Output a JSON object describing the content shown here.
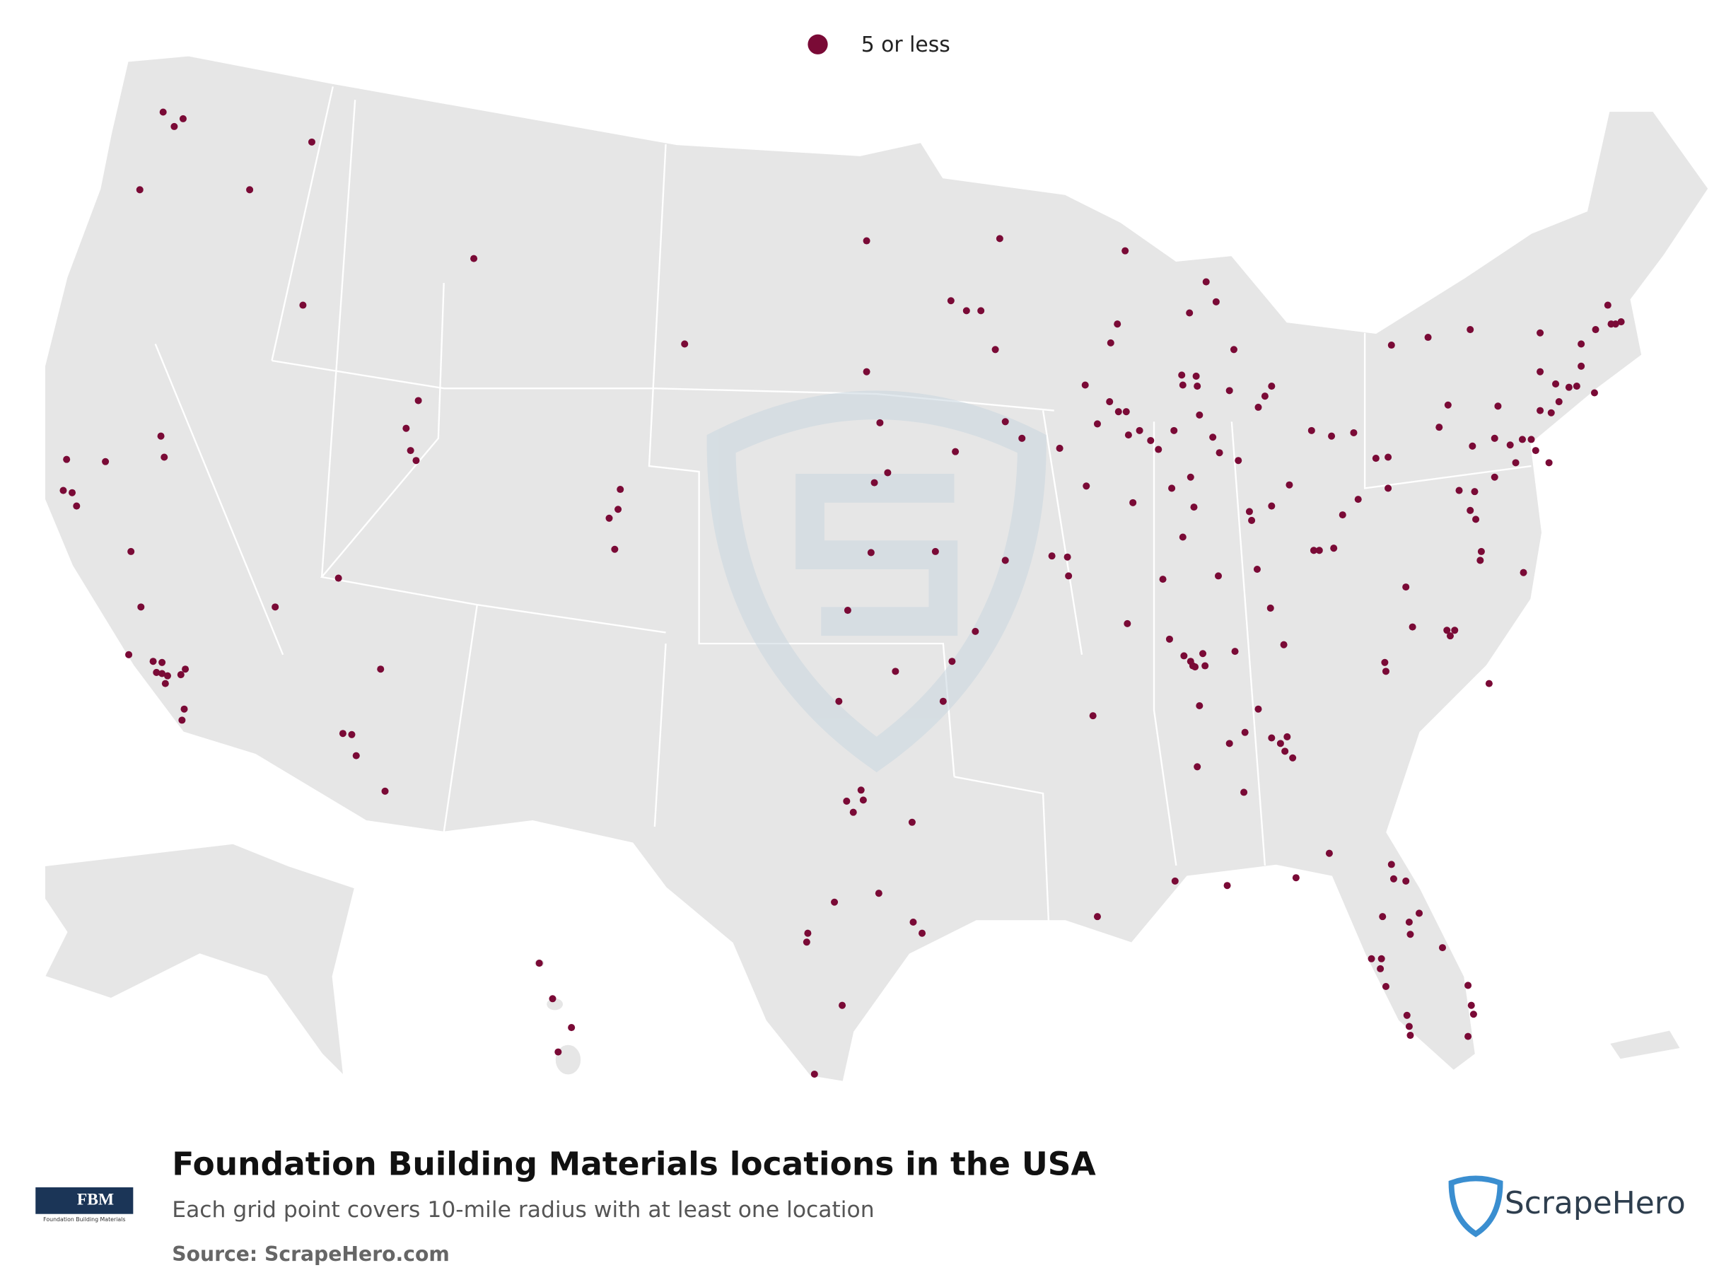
{
  "legend": {
    "label": "5 or less"
  },
  "title": "Foundation Building Materials locations in the USA",
  "subtitle": "Each grid point covers 10-mile radius with at least one location",
  "source": "Source: ScrapeHero.com",
  "logos": {
    "fbm": "FBM",
    "fbm_tagline": "Foundation Building Materials",
    "brand": "ScrapeHero"
  }
}
